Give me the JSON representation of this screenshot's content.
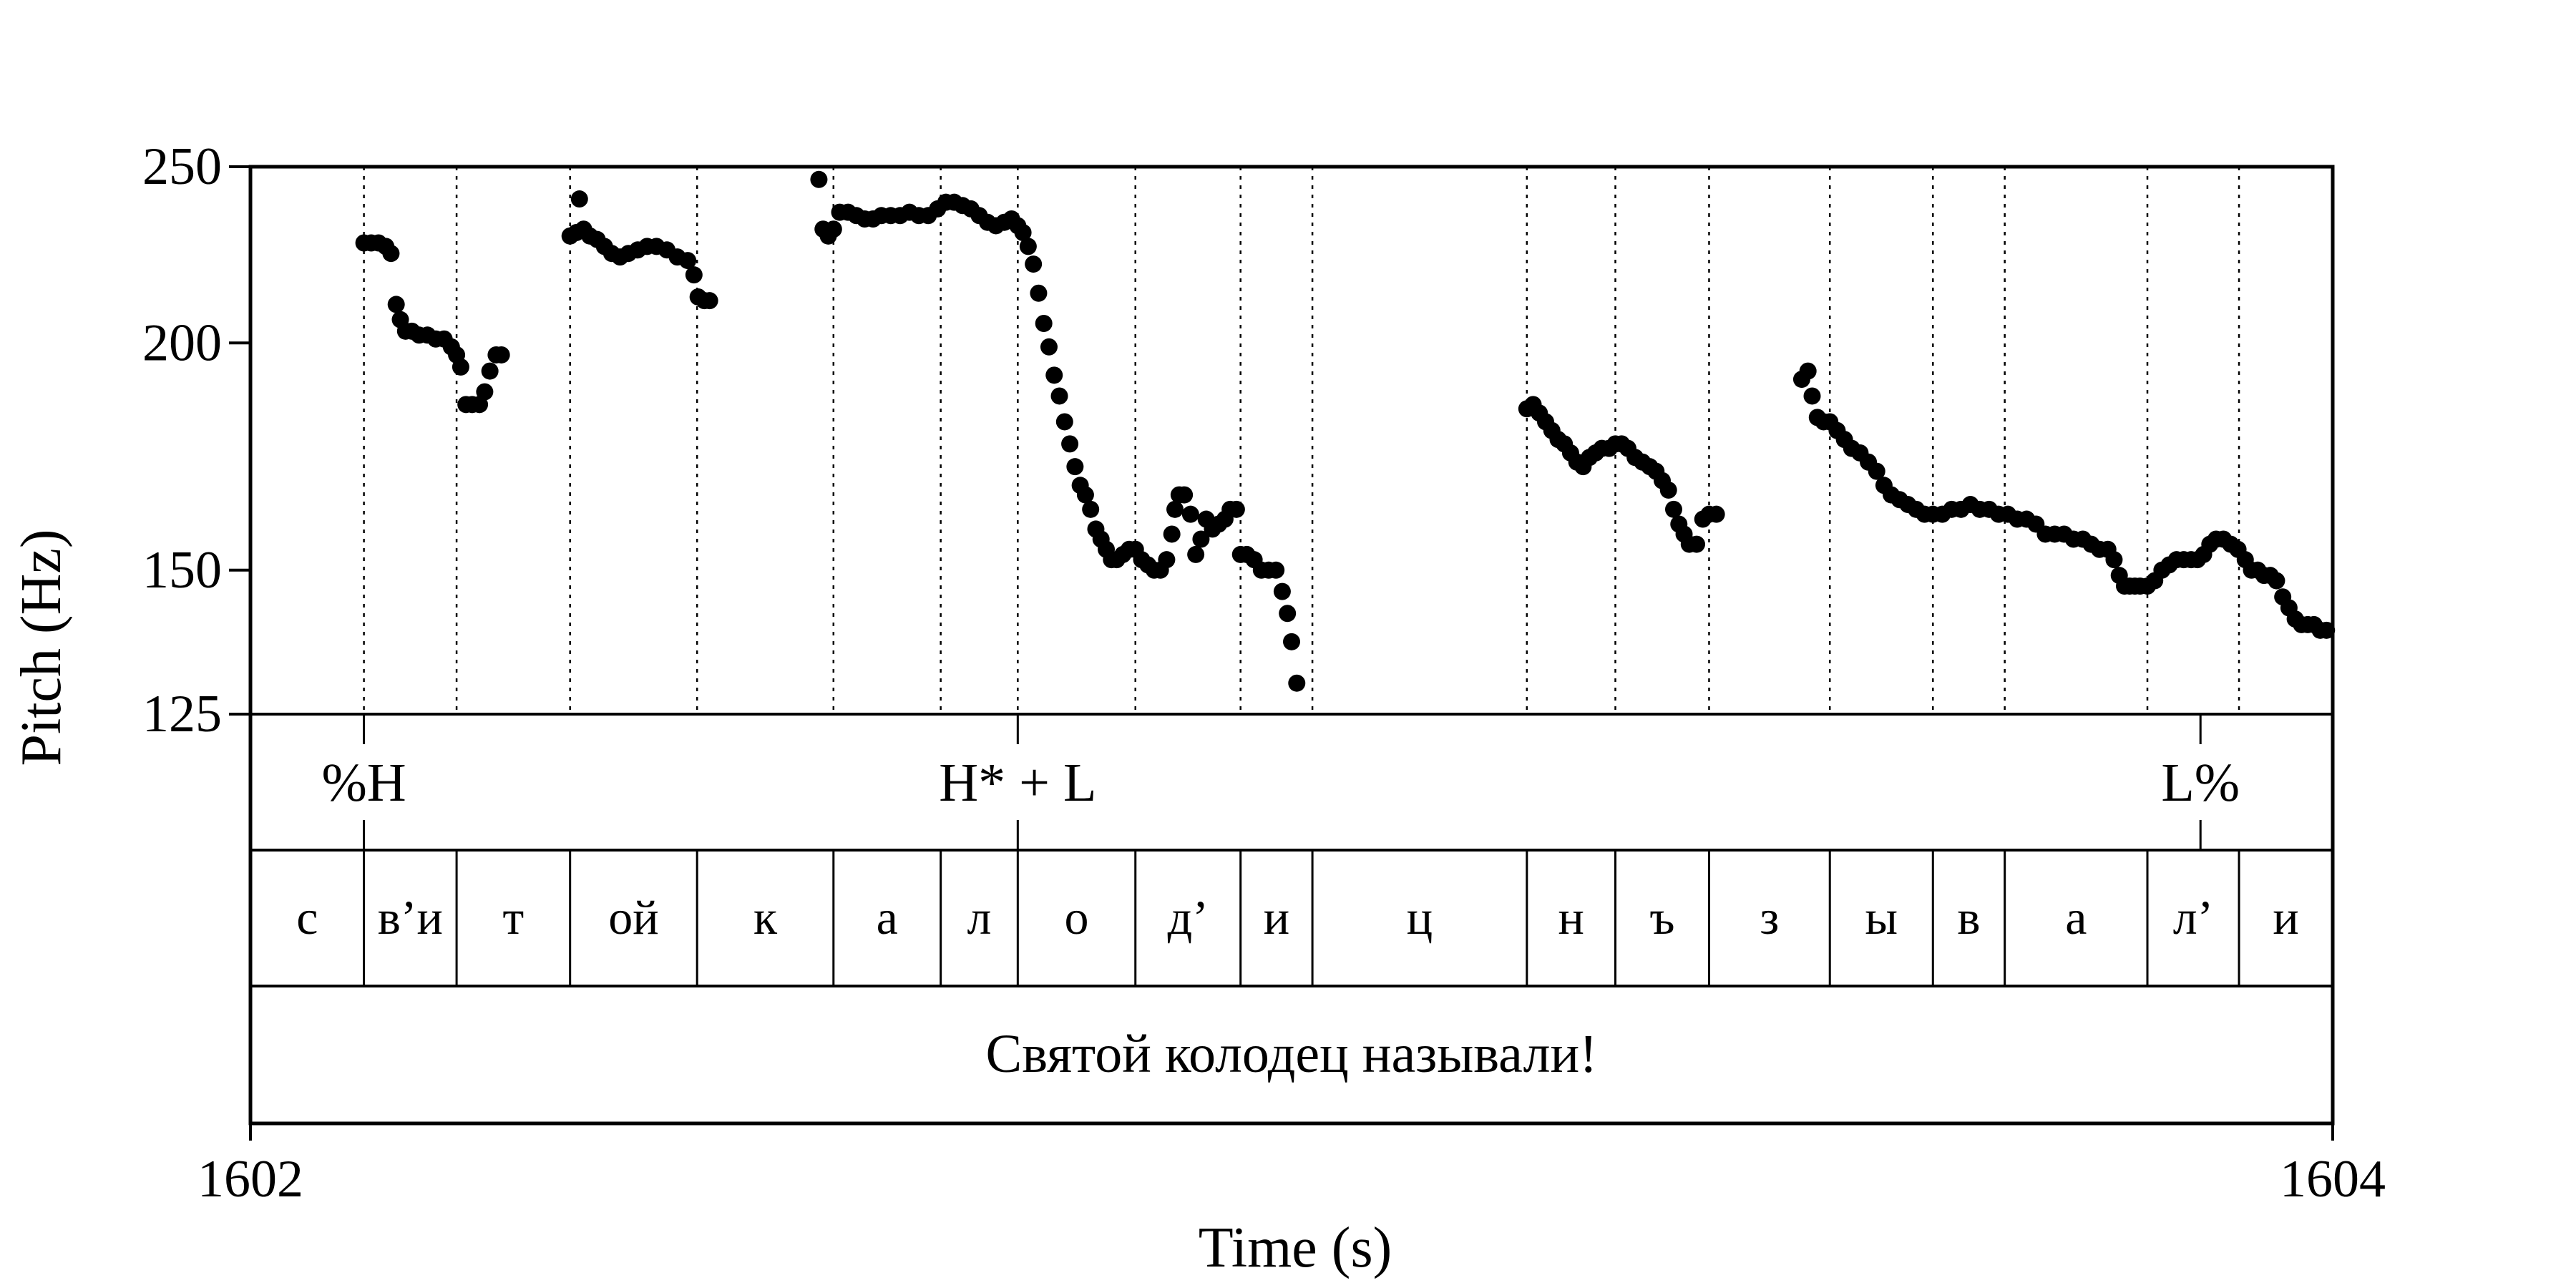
{
  "chart_data": {
    "type": "scatter",
    "xlabel": "Time (s)",
    "ylabel": "Pitch (Hz)",
    "xlim": [
      1602,
      1604
    ],
    "ylim": [
      125,
      250
    ],
    "x_ticks": [
      "1602",
      "1604"
    ],
    "y_ticks": [
      250,
      200,
      150,
      125
    ],
    "y_tick_labels": [
      "250",
      "200",
      "150",
      "125"
    ],
    "grid": "dotted vertical lines at segment boundaries",
    "tones": [
      {
        "label": "%H",
        "t": 1602.109
      },
      {
        "label": "H* + L",
        "t": 1602.737
      },
      {
        "label": "L%",
        "t": 1603.873
      }
    ],
    "segments": [
      {
        "label": "с",
        "start": 1602.0,
        "end": 1602.109
      },
      {
        "label": "в’и",
        "start": 1602.109,
        "end": 1602.198
      },
      {
        "label": "т",
        "start": 1602.198,
        "end": 1602.307
      },
      {
        "label": "ой",
        "start": 1602.307,
        "end": 1602.429
      },
      {
        "label": "к",
        "start": 1602.429,
        "end": 1602.56
      },
      {
        "label": "а",
        "start": 1602.56,
        "end": 1602.663
      },
      {
        "label": "л",
        "start": 1602.663,
        "end": 1602.737
      },
      {
        "label": "о",
        "start": 1602.737,
        "end": 1602.85
      },
      {
        "label": "д’",
        "start": 1602.85,
        "end": 1602.951
      },
      {
        "label": "и",
        "start": 1602.951,
        "end": 1603.02
      },
      {
        "label": "ц",
        "start": 1603.02,
        "end": 1603.226
      },
      {
        "label": "н",
        "start": 1603.226,
        "end": 1603.311
      },
      {
        "label": "ъ",
        "start": 1603.311,
        "end": 1603.401
      },
      {
        "label": "з",
        "start": 1603.401,
        "end": 1603.517
      },
      {
        "label": "ы",
        "start": 1603.517,
        "end": 1603.616
      },
      {
        "label": "в",
        "start": 1603.616,
        "end": 1603.685
      },
      {
        "label": "а",
        "start": 1603.685,
        "end": 1603.822
      },
      {
        "label": "л’",
        "start": 1603.822,
        "end": 1603.91
      },
      {
        "label": "и",
        "start": 1603.91,
        "end": 1604.0
      }
    ],
    "sentence": "Святой колодец называли!",
    "series": [
      {
        "points": [
          [
            1602.109,
            227
          ],
          [
            1602.116,
            227
          ],
          [
            1602.123,
            227
          ],
          [
            1602.13,
            226
          ],
          [
            1602.135,
            224
          ],
          [
            1602.14,
            210
          ],
          [
            1602.144,
            206
          ],
          [
            1602.149,
            203
          ],
          [
            1602.155,
            203
          ],
          [
            1602.162,
            202
          ],
          [
            1602.17,
            202
          ],
          [
            1602.178,
            201
          ],
          [
            1602.186,
            201
          ],
          [
            1602.193,
            199
          ],
          [
            1602.198,
            197
          ],
          [
            1602.202,
            194
          ],
          [
            1602.207,
            185
          ],
          [
            1602.213,
            185
          ],
          [
            1602.22,
            185
          ],
          [
            1602.225,
            188
          ],
          [
            1602.23,
            193
          ],
          [
            1602.236,
            197
          ],
          [
            1602.241,
            197
          ],
          [
            1602.307,
            229
          ],
          [
            1602.313,
            230
          ],
          [
            1602.316,
            240
          ],
          [
            1602.32,
            231
          ],
          [
            1602.326,
            229
          ],
          [
            1602.333,
            228
          ],
          [
            1602.34,
            226
          ],
          [
            1602.347,
            224
          ],
          [
            1602.355,
            223
          ],
          [
            1602.363,
            224
          ],
          [
            1602.372,
            225
          ],
          [
            1602.381,
            226
          ],
          [
            1602.39,
            226
          ],
          [
            1602.4,
            225
          ],
          [
            1602.41,
            223
          ],
          [
            1602.42,
            222
          ],
          [
            1602.426,
            218
          ],
          [
            1602.43,
            212
          ],
          [
            1602.436,
            211
          ],
          [
            1602.441,
            211
          ],
          [
            1602.546,
            246
          ],
          [
            1602.55,
            231
          ],
          [
            1602.555,
            229
          ],
          [
            1602.56,
            231
          ],
          [
            1602.566,
            236
          ],
          [
            1602.574,
            236
          ],
          [
            1602.582,
            235
          ],
          [
            1602.59,
            234
          ],
          [
            1602.598,
            234
          ],
          [
            1602.606,
            235
          ],
          [
            1602.615,
            235
          ],
          [
            1602.624,
            235
          ],
          [
            1602.633,
            236
          ],
          [
            1602.642,
            235
          ],
          [
            1602.651,
            235
          ],
          [
            1602.66,
            237
          ],
          [
            1602.668,
            239
          ],
          [
            1602.676,
            239
          ],
          [
            1602.684,
            238
          ],
          [
            1602.692,
            237
          ],
          [
            1602.7,
            235
          ],
          [
            1602.708,
            233
          ],
          [
            1602.716,
            232
          ],
          [
            1602.724,
            233
          ],
          [
            1602.731,
            234
          ],
          [
            1602.737,
            232
          ],
          [
            1602.742,
            230
          ],
          [
            1602.747,
            226
          ],
          [
            1602.752,
            221
          ],
          [
            1602.757,
            213
          ],
          [
            1602.762,
            205
          ],
          [
            1602.767,
            199
          ],
          [
            1602.772,
            192
          ],
          [
            1602.777,
            187
          ],
          [
            1602.782,
            181
          ],
          [
            1602.787,
            176
          ],
          [
            1602.792,
            171
          ],
          [
            1602.797,
            167
          ],
          [
            1602.802,
            165
          ],
          [
            1602.807,
            162
          ],
          [
            1602.812,
            158
          ],
          [
            1602.817,
            156
          ],
          [
            1602.822,
            154
          ],
          [
            1602.827,
            152
          ],
          [
            1602.832,
            152
          ],
          [
            1602.838,
            153
          ],
          [
            1602.844,
            154
          ],
          [
            1602.85,
            154
          ],
          [
            1602.856,
            152
          ],
          [
            1602.862,
            151
          ],
          [
            1602.868,
            150
          ],
          [
            1602.874,
            150
          ],
          [
            1602.88,
            152
          ],
          [
            1602.885,
            157
          ],
          [
            1602.888,
            162
          ],
          [
            1602.892,
            165
          ],
          [
            1602.897,
            165
          ],
          [
            1602.903,
            161
          ],
          [
            1602.908,
            153
          ],
          [
            1602.913,
            156
          ],
          [
            1602.918,
            160
          ],
          [
            1602.924,
            158
          ],
          [
            1602.93,
            159
          ],
          [
            1602.936,
            160
          ],
          [
            1602.941,
            162
          ],
          [
            1602.947,
            162
          ],
          [
            1602.951,
            153
          ],
          [
            1602.957,
            153
          ],
          [
            1602.964,
            152
          ],
          [
            1602.971,
            150
          ],
          [
            1602.978,
            150
          ],
          [
            1602.985,
            150
          ],
          [
            1602.991,
            146
          ],
          [
            1602.996,
            142
          ],
          [
            1603.0,
            137
          ],
          [
            1603.005,
            130
          ],
          [
            1603.226,
            184
          ],
          [
            1603.232,
            185
          ],
          [
            1603.238,
            183
          ],
          [
            1603.244,
            181
          ],
          [
            1603.25,
            179
          ],
          [
            1603.256,
            177
          ],
          [
            1603.262,
            176
          ],
          [
            1603.268,
            174
          ],
          [
            1603.274,
            172
          ],
          [
            1603.28,
            171
          ],
          [
            1603.286,
            173
          ],
          [
            1603.292,
            174
          ],
          [
            1603.298,
            175
          ],
          [
            1603.305,
            175
          ],
          [
            1603.311,
            176
          ],
          [
            1603.317,
            176
          ],
          [
            1603.323,
            175
          ],
          [
            1603.33,
            173
          ],
          [
            1603.337,
            172
          ],
          [
            1603.344,
            171
          ],
          [
            1603.35,
            170
          ],
          [
            1603.356,
            168
          ],
          [
            1603.362,
            166
          ],
          [
            1603.367,
            162
          ],
          [
            1603.372,
            159
          ],
          [
            1603.377,
            157
          ],
          [
            1603.382,
            155
          ],
          [
            1603.389,
            155
          ],
          [
            1603.395,
            160
          ],
          [
            1603.401,
            161
          ],
          [
            1603.408,
            161
          ],
          [
            1603.49,
            191
          ],
          [
            1603.496,
            193
          ],
          [
            1603.5,
            187
          ],
          [
            1603.505,
            182
          ],
          [
            1603.511,
            181
          ],
          [
            1603.517,
            181
          ],
          [
            1603.524,
            179
          ],
          [
            1603.531,
            177
          ],
          [
            1603.538,
            175
          ],
          [
            1603.546,
            174
          ],
          [
            1603.554,
            172
          ],
          [
            1603.562,
            170
          ],
          [
            1603.569,
            167
          ],
          [
            1603.576,
            165
          ],
          [
            1603.584,
            164
          ],
          [
            1603.592,
            163
          ],
          [
            1603.6,
            162
          ],
          [
            1603.608,
            161
          ],
          [
            1603.616,
            161
          ],
          [
            1603.625,
            161
          ],
          [
            1603.634,
            162
          ],
          [
            1603.643,
            162
          ],
          [
            1603.652,
            163
          ],
          [
            1603.661,
            162
          ],
          [
            1603.67,
            162
          ],
          [
            1603.679,
            161
          ],
          [
            1603.688,
            161
          ],
          [
            1603.697,
            160
          ],
          [
            1603.706,
            160
          ],
          [
            1603.715,
            159
          ],
          [
            1603.724,
            157
          ],
          [
            1603.733,
            157
          ],
          [
            1603.742,
            157
          ],
          [
            1603.751,
            156
          ],
          [
            1603.76,
            156
          ],
          [
            1603.768,
            155
          ],
          [
            1603.776,
            154
          ],
          [
            1603.784,
            154
          ],
          [
            1603.79,
            152
          ],
          [
            1603.795,
            149
          ],
          [
            1603.8,
            147
          ],
          [
            1603.805,
            147
          ],
          [
            1603.81,
            147
          ],
          [
            1603.815,
            147
          ],
          [
            1603.822,
            147
          ],
          [
            1603.829,
            148
          ],
          [
            1603.836,
            150
          ],
          [
            1603.843,
            151
          ],
          [
            1603.85,
            152
          ],
          [
            1603.857,
            152
          ],
          [
            1603.864,
            152
          ],
          [
            1603.87,
            152
          ],
          [
            1603.876,
            153
          ],
          [
            1603.882,
            155
          ],
          [
            1603.888,
            156
          ],
          [
            1603.895,
            156
          ],
          [
            1603.902,
            155
          ],
          [
            1603.909,
            154
          ],
          [
            1603.916,
            152
          ],
          [
            1603.922,
            150
          ],
          [
            1603.928,
            150
          ],
          [
            1603.934,
            149
          ],
          [
            1603.94,
            149
          ],
          [
            1603.946,
            148
          ],
          [
            1603.952,
            145
          ],
          [
            1603.958,
            143
          ],
          [
            1603.964,
            141
          ],
          [
            1603.97,
            140
          ],
          [
            1603.976,
            140
          ],
          [
            1603.982,
            140
          ],
          [
            1603.988,
            139
          ],
          [
            1603.994,
            139
          ]
        ]
      }
    ]
  }
}
